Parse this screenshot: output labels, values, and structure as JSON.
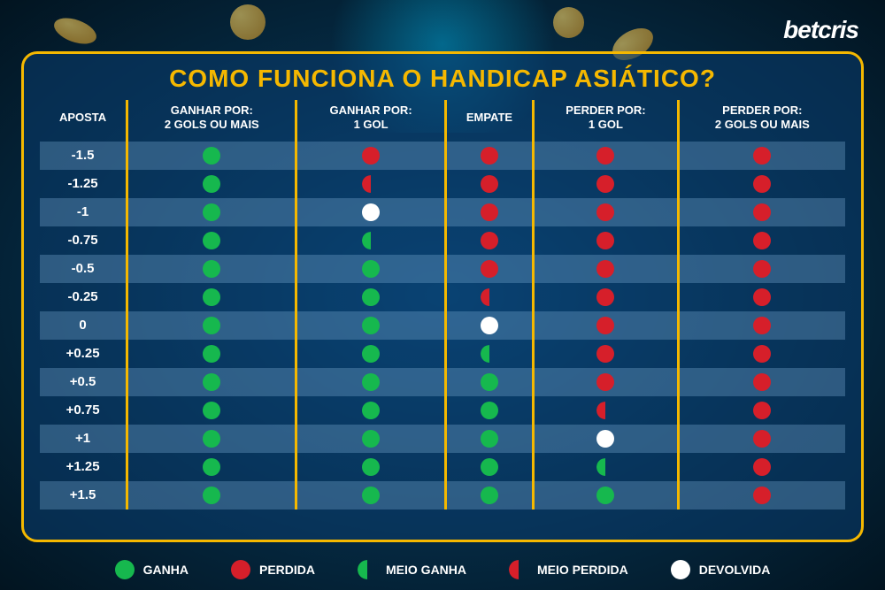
{
  "brand": "betcris",
  "title": "COMO FUNCIONA O HANDICAP ASIÁTICO?",
  "colors": {
    "accent": "#f5b800",
    "win": "#16b84e",
    "lose": "#d61f2a",
    "push": "#ffffff",
    "panel_border": "#f5b800",
    "bg_gradient_inner": "#0a4a7a",
    "bg_gradient_outer": "#021420",
    "row_stripe": "rgba(120,170,210,0.35)"
  },
  "columns": [
    "APOSTA",
    "GANHAR POR:\n2 GOLS OU MAIS",
    "GANHAR POR:\n1 GOL",
    "EMPATE",
    "PERDER POR:\n1 GOL",
    "PERDER POR:\n2 GOLS OU MAIS"
  ],
  "outcomes": {
    "win": "win",
    "lose": "lose",
    "push": "push",
    "halfwin": "halfwin",
    "halflose": "halflose"
  },
  "rows": [
    {
      "bet": "-1.5",
      "cells": [
        "win",
        "lose",
        "lose",
        "lose",
        "lose"
      ]
    },
    {
      "bet": "-1.25",
      "cells": [
        "win",
        "halflose",
        "lose",
        "lose",
        "lose"
      ]
    },
    {
      "bet": "-1",
      "cells": [
        "win",
        "push",
        "lose",
        "lose",
        "lose"
      ]
    },
    {
      "bet": "-0.75",
      "cells": [
        "win",
        "halfwin",
        "lose",
        "lose",
        "lose"
      ]
    },
    {
      "bet": "-0.5",
      "cells": [
        "win",
        "win",
        "lose",
        "lose",
        "lose"
      ]
    },
    {
      "bet": "-0.25",
      "cells": [
        "win",
        "win",
        "halflose",
        "lose",
        "lose"
      ]
    },
    {
      "bet": "0",
      "cells": [
        "win",
        "win",
        "push",
        "lose",
        "lose"
      ]
    },
    {
      "bet": "+0.25",
      "cells": [
        "win",
        "win",
        "halfwin",
        "lose",
        "lose"
      ]
    },
    {
      "bet": "+0.5",
      "cells": [
        "win",
        "win",
        "win",
        "lose",
        "lose"
      ]
    },
    {
      "bet": "+0.75",
      "cells": [
        "win",
        "win",
        "win",
        "halflose",
        "lose"
      ]
    },
    {
      "bet": "+1",
      "cells": [
        "win",
        "win",
        "win",
        "push",
        "lose"
      ]
    },
    {
      "bet": "+1.25",
      "cells": [
        "win",
        "win",
        "win",
        "halfwin",
        "lose"
      ]
    },
    {
      "bet": "+1.5",
      "cells": [
        "win",
        "win",
        "win",
        "win",
        "lose"
      ]
    }
  ],
  "legend": [
    {
      "type": "win",
      "label": "GANHA"
    },
    {
      "type": "lose",
      "label": "PERDIDA"
    },
    {
      "type": "halfwin",
      "label": "MEIO GANHA"
    },
    {
      "type": "halflose",
      "label": "MEIO PERDIDA"
    },
    {
      "type": "push",
      "label": "DEVOLVIDA"
    }
  ]
}
